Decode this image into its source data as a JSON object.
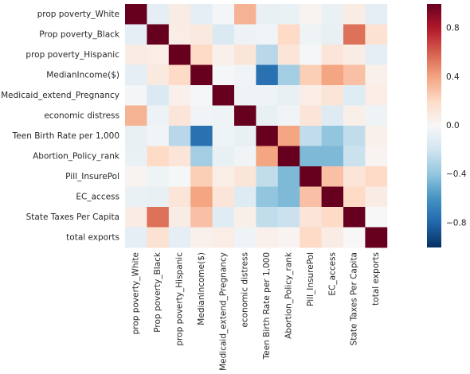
{
  "chart_data": {
    "type": "heatmap",
    "title": "",
    "xlabel": "",
    "ylabel": "",
    "labels": [
      "prop poverty_White",
      "Prop poverty_Black",
      "prop poverty_Hispanic",
      "MedianIncome($)",
      "Medicaid_extend_Pregnancy",
      "economic distress",
      "Teen Birth Rate per 1,000",
      "Abortion_Policy_rank",
      "Pill_InsurePol",
      "EC_access",
      "State Taxes Per Capita",
      "total exports"
    ],
    "matrix": [
      [
        1.0,
        -0.1,
        0.08,
        -0.1,
        -0.02,
        0.35,
        -0.08,
        -0.07,
        0.03,
        -0.07,
        0.08,
        -0.1
      ],
      [
        -0.1,
        1.0,
        0.07,
        0.1,
        -0.15,
        -0.06,
        -0.03,
        0.2,
        -0.05,
        -0.08,
        0.55,
        0.15
      ],
      [
        0.08,
        0.07,
        1.0,
        0.2,
        0.05,
        0.13,
        -0.28,
        0.13,
        -0.01,
        0.13,
        0.08,
        -0.1
      ],
      [
        -0.1,
        0.1,
        0.2,
        1.0,
        -0.01,
        -0.03,
        -0.75,
        -0.35,
        0.25,
        0.4,
        0.3,
        0.05
      ],
      [
        -0.02,
        -0.15,
        0.05,
        -0.01,
        1.0,
        -0.05,
        -0.05,
        -0.08,
        0.07,
        0.13,
        -0.12,
        0.07
      ],
      [
        0.35,
        -0.06,
        0.13,
        -0.03,
        -0.05,
        1.0,
        -0.08,
        -0.03,
        0.13,
        -0.13,
        0.06,
        -0.05
      ],
      [
        -0.08,
        -0.03,
        -0.28,
        -0.75,
        -0.05,
        -0.08,
        1.0,
        0.4,
        -0.25,
        -0.4,
        -0.25,
        0.05
      ],
      [
        -0.07,
        0.2,
        0.13,
        -0.35,
        -0.08,
        -0.03,
        0.4,
        1.0,
        -0.45,
        -0.45,
        -0.22,
        0.03
      ],
      [
        0.03,
        -0.05,
        -0.01,
        0.25,
        0.07,
        0.13,
        -0.25,
        -0.45,
        1.0,
        0.3,
        0.13,
        0.2
      ],
      [
        -0.07,
        -0.08,
        0.13,
        0.4,
        0.13,
        -0.13,
        -0.4,
        -0.45,
        0.3,
        1.0,
        0.2,
        0.08
      ],
      [
        0.08,
        0.55,
        0.08,
        0.3,
        -0.12,
        0.06,
        -0.25,
        -0.22,
        0.13,
        0.2,
        1.0,
        0.0
      ],
      [
        -0.1,
        0.15,
        -0.1,
        0.05,
        0.07,
        -0.05,
        0.05,
        0.03,
        0.2,
        0.08,
        0.0,
        1.0
      ]
    ],
    "colorbar": {
      "vmin": -1.0,
      "vmax": 1.0,
      "ticks": [
        0.8,
        0.4,
        0.0,
        -0.4,
        -0.8
      ],
      "tick_labels": [
        "0.8",
        "0.4",
        "0.0",
        "−0.4",
        "−0.8"
      ],
      "colormap": [
        "#053061",
        "#2166ac",
        "#4393c3",
        "#92c5de",
        "#d1e5f0",
        "#f7f7f7",
        "#fddbc7",
        "#f4a582",
        "#d6604d",
        "#b2182b",
        "#67001f"
      ]
    },
    "grid": false
  }
}
